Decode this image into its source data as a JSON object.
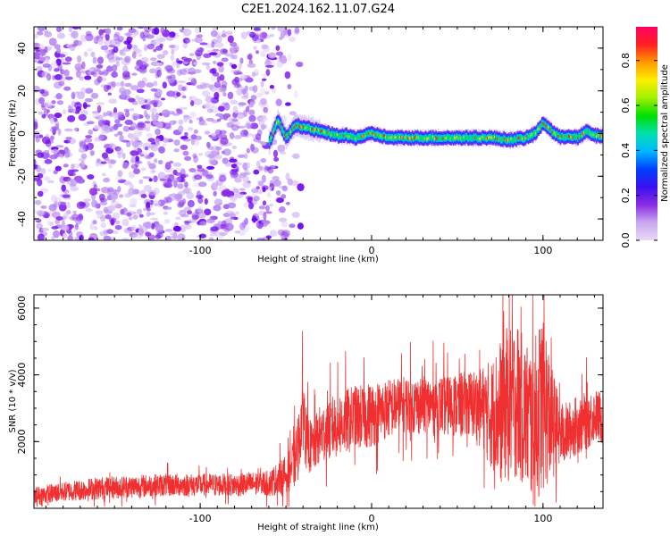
{
  "title": "C2E1.2024.162.11.07.G24",
  "chart_data": [
    {
      "type": "heatmap",
      "xlabel": "Height of straight line (km)",
      "ylabel": "Frequency (Hz)",
      "xlim": [
        -197,
        135
      ],
      "ylim": [
        -50,
        50
      ],
      "xticks": [
        -100,
        0,
        100
      ],
      "yticks": [
        -40,
        -20,
        0,
        20,
        40
      ],
      "grid": false,
      "colorbar": {
        "label": "Normalized spectral amplitude",
        "range": [
          0.0,
          0.95
        ],
        "ticks": [
          0.0,
          0.2,
          0.4,
          0.6,
          0.8
        ],
        "colormap": [
          "#e8d8f8",
          "#c9a8f0",
          "#8a2be2",
          "#3a10f0",
          "#0040ff",
          "#00b8ff",
          "#00e0b0",
          "#00e000",
          "#a0f000",
          "#ffee00",
          "#ff9900",
          "#ff2020",
          "#ff0066"
        ]
      },
      "noise_region_x": [
        -197,
        -40
      ],
      "ridge": {
        "x": [
          -60,
          -55,
          -50,
          -45,
          -40,
          -35,
          -30,
          -25,
          -20,
          -15,
          -10,
          -5,
          0,
          10,
          20,
          30,
          40,
          50,
          60,
          70,
          80,
          90,
          95,
          100,
          105,
          110,
          115,
          120,
          125,
          130,
          135
        ],
        "y": [
          -4,
          6,
          -2,
          4,
          3,
          2,
          1,
          0,
          -1,
          -1,
          -2,
          -1,
          0,
          -2,
          -2,
          -2,
          -2,
          -2,
          -2,
          -2,
          -3,
          -2,
          0,
          5,
          1,
          -2,
          -1,
          -2,
          1,
          -1,
          -1
        ]
      }
    },
    {
      "type": "line",
      "xlabel": "Height of straight line (km)",
      "ylabel": "SNR (10 * v/v)",
      "xlim": [
        -197,
        135
      ],
      "ylim": [
        0,
        6400
      ],
      "xticks": [
        -100,
        0,
        100
      ],
      "yticks": [
        2000,
        4000,
        6000
      ],
      "grid": false,
      "series": [
        {
          "color": "#f03030",
          "x": [
            -197,
            -180,
            -160,
            -140,
            -120,
            -100,
            -80,
            -60,
            -50,
            -45,
            -42,
            -40,
            -38,
            -35,
            -30,
            -20,
            -10,
            0,
            10,
            20,
            30,
            40,
            50,
            60,
            65,
            70,
            75,
            80,
            85,
            90,
            95,
            100,
            105,
            110,
            115,
            120,
            125,
            130,
            135
          ],
          "y": [
            350,
            500,
            600,
            650,
            700,
            700,
            700,
            750,
            1000,
            1400,
            2100,
            3200,
            2000,
            1800,
            2200,
            2500,
            2700,
            2800,
            3000,
            3100,
            3100,
            3100,
            3100,
            3100,
            3000,
            2800,
            2900,
            3200,
            3300,
            2800,
            2500,
            3300,
            2600,
            2200,
            2300,
            2500,
            2600,
            2800,
            2700
          ],
          "spread": [
            300,
            300,
            350,
            350,
            350,
            350,
            350,
            400,
            600,
            800,
            1000,
            1100,
            900,
            800,
            900,
            1000,
            1000,
            1000,
            900,
            900,
            900,
            900,
            1000,
            1100,
            1300,
            1700,
            2200,
            2500,
            2400,
            2300,
            2600,
            2800,
            1800,
            1000,
            900,
            900,
            900,
            800,
            800
          ]
        }
      ]
    }
  ]
}
